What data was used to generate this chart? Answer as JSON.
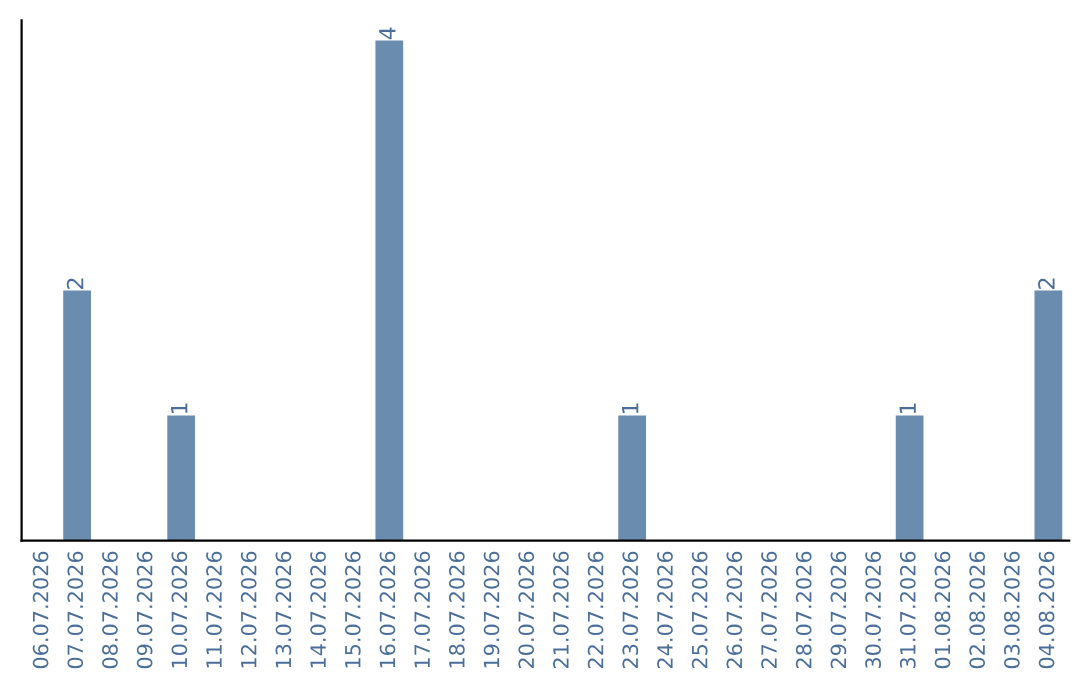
{
  "chart_data": {
    "type": "bar",
    "categories": [
      "06.07.2026",
      "07.07.2026",
      "08.07.2026",
      "09.07.2026",
      "10.07.2026",
      "11.07.2026",
      "12.07.2026",
      "13.07.2026",
      "14.07.2026",
      "15.07.2026",
      "16.07.2026",
      "17.07.2026",
      "18.07.2026",
      "19.07.2026",
      "20.07.2026",
      "21.07.2026",
      "22.07.2026",
      "23.07.2026",
      "24.07.2026",
      "25.07.2026",
      "26.07.2026",
      "27.07.2026",
      "28.07.2026",
      "29.07.2026",
      "30.07.2026",
      "31.07.2026",
      "01.08.2026",
      "02.08.2026",
      "03.08.2026",
      "04.08.2026"
    ],
    "values": [
      0,
      2,
      0,
      0,
      1,
      0,
      0,
      0,
      0,
      0,
      4,
      0,
      0,
      0,
      0,
      0,
      0,
      1,
      0,
      0,
      0,
      0,
      0,
      0,
      0,
      1,
      0,
      0,
      0,
      2
    ],
    "value_labels": [
      null,
      "2",
      null,
      null,
      "1",
      null,
      null,
      null,
      null,
      null,
      "4",
      null,
      null,
      null,
      null,
      null,
      null,
      "1",
      null,
      null,
      null,
      null,
      null,
      null,
      null,
      "1",
      null,
      null,
      null,
      "2"
    ],
    "color": "#6a8caf",
    "tick_labels": "x",
    "grid": false,
    "legend": false
  }
}
